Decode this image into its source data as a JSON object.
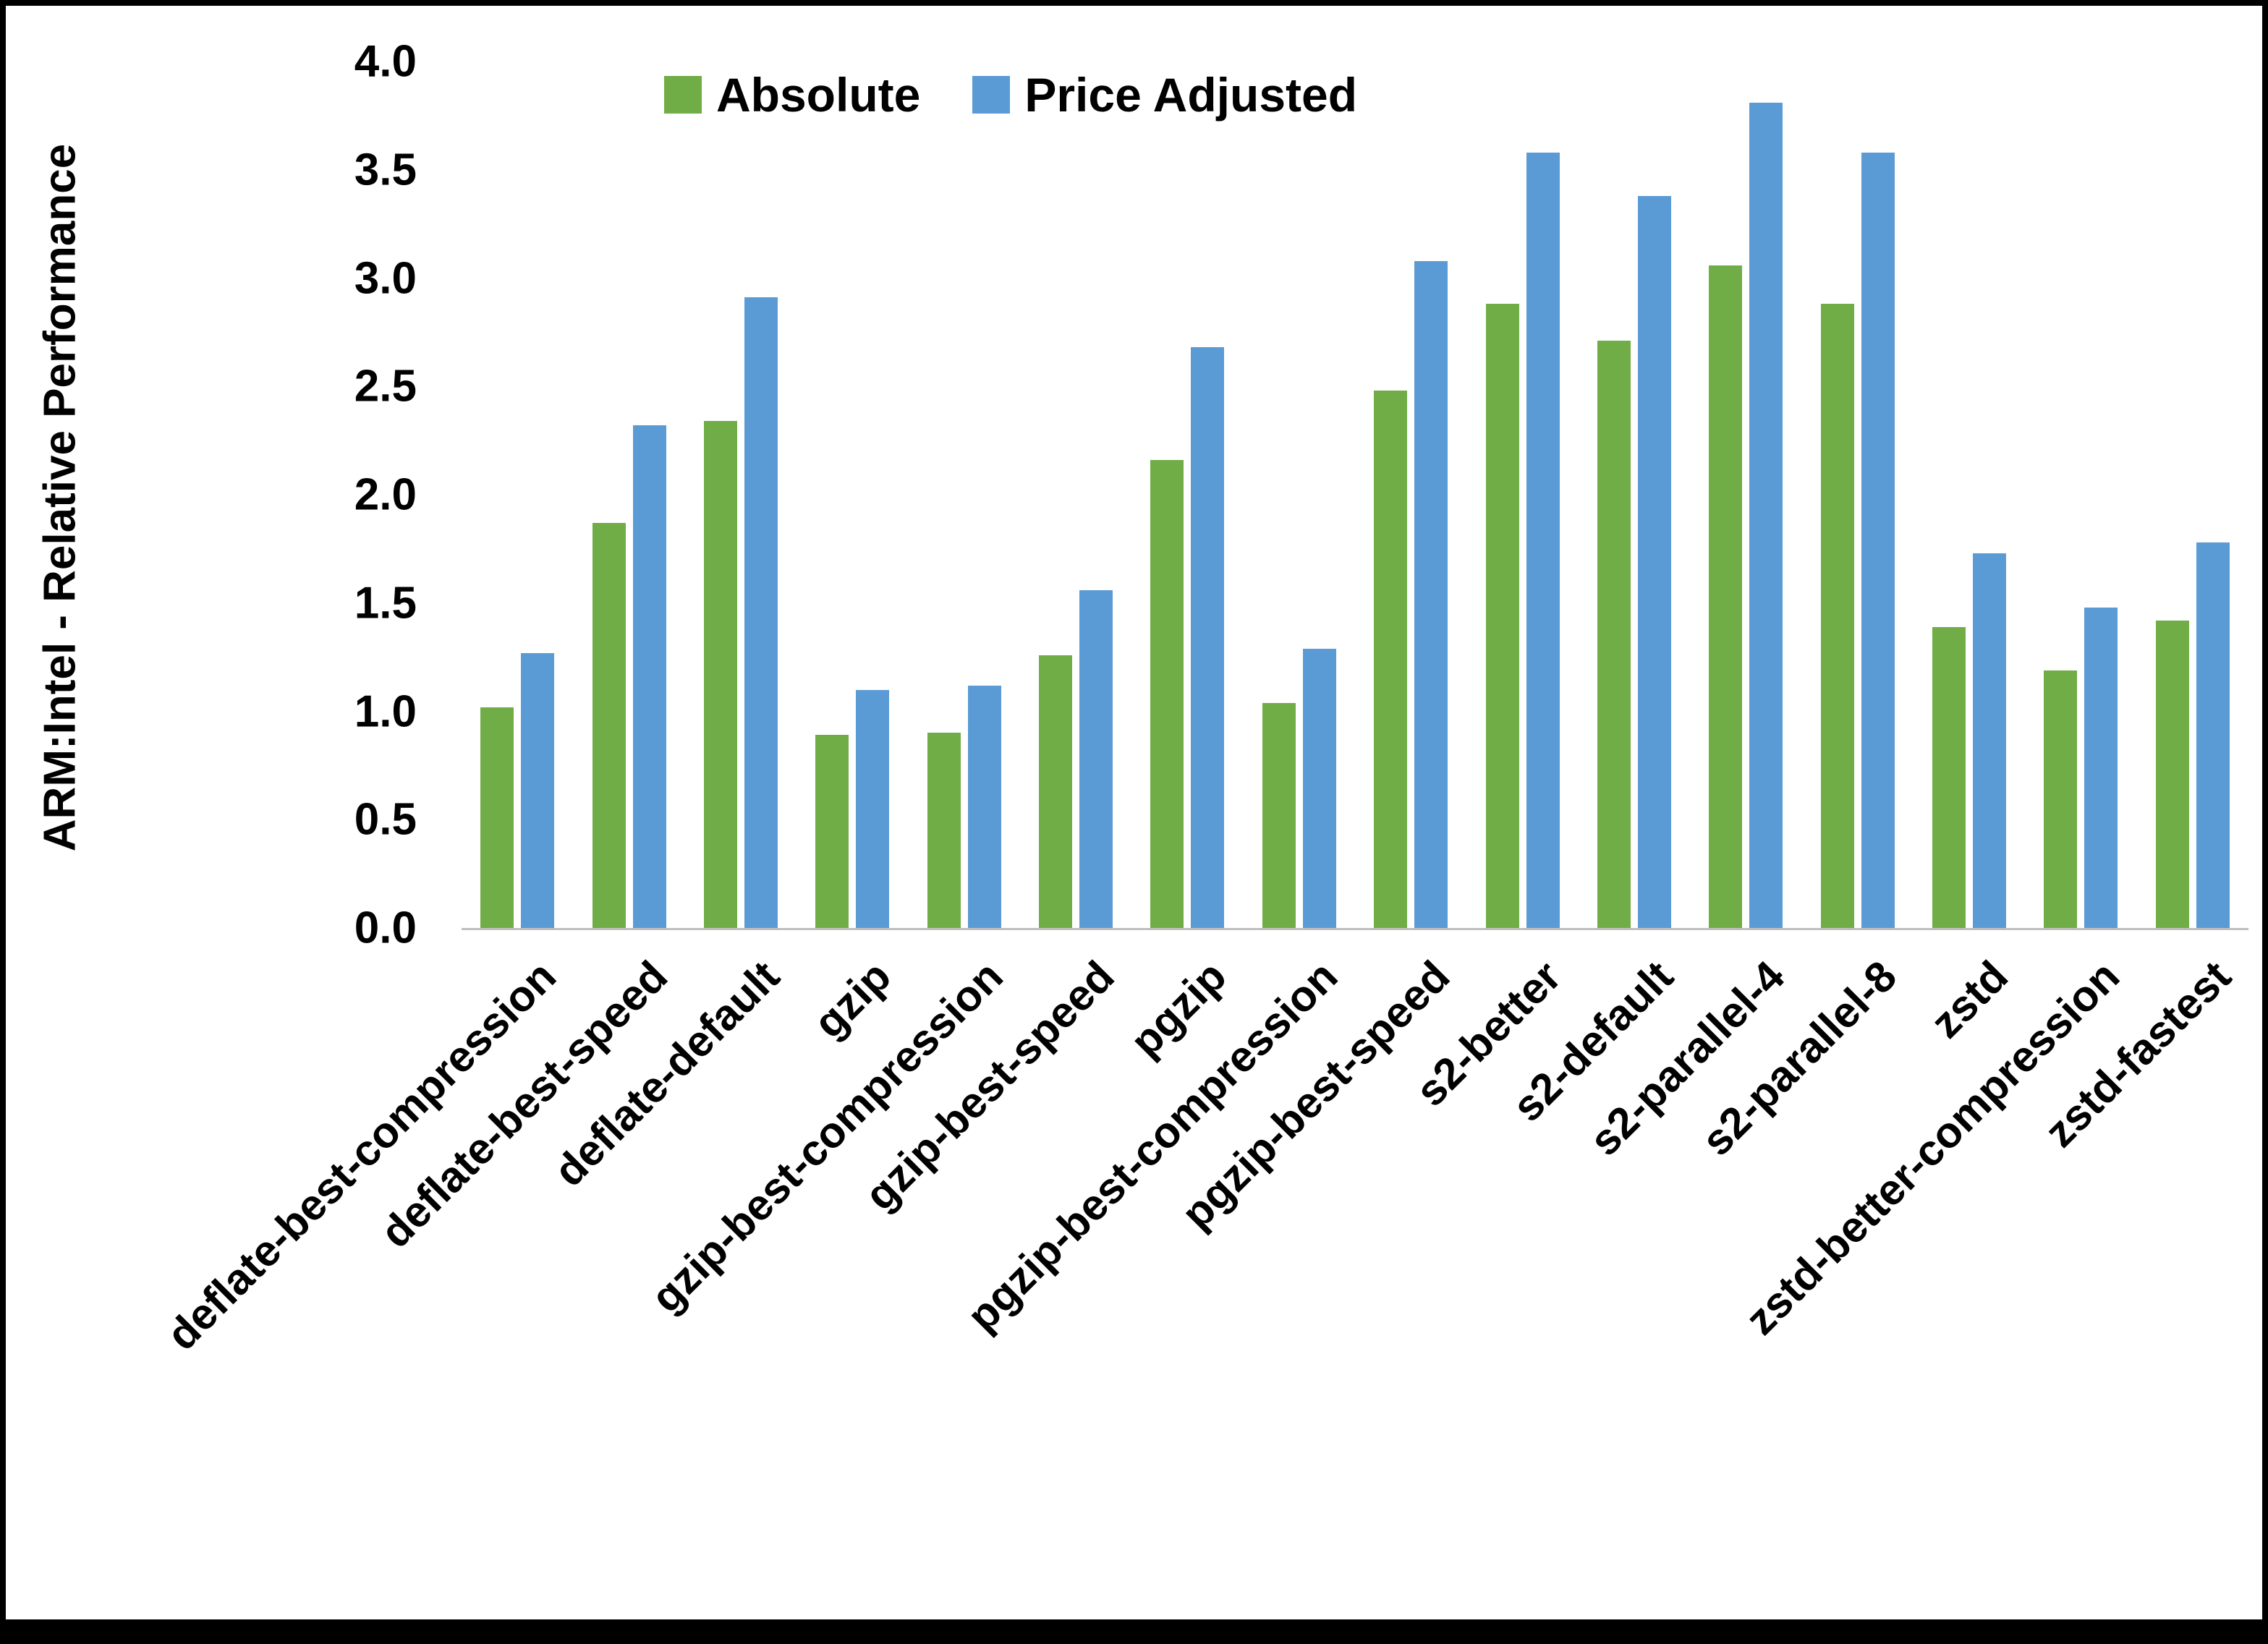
{
  "chart_data": {
    "type": "bar",
    "title": "",
    "xlabel": "",
    "ylabel": "ARM:Intel - Relative Performance",
    "ylim": [
      0.0,
      4.0
    ],
    "y_ticks": [
      "0.0",
      "0.5",
      "1.0",
      "1.5",
      "2.0",
      "2.5",
      "3.0",
      "3.5",
      "4.0"
    ],
    "grid": false,
    "legend_position": "top",
    "axis_line_color": "#bfbfbf",
    "categories": [
      "deflate-best-compression",
      "deflate-best-speed",
      "deflate-default",
      "gzip",
      "gzip-best-compression",
      "gzip-best-speed",
      "pgzip",
      "pgzip-best-compression",
      "pgzip-best-speed",
      "s2-better",
      "s2-default",
      "s2-parallel-4",
      "s2-parallel-8",
      "zstd",
      "zstd-better-compression",
      "zstd-fastest"
    ],
    "series": [
      {
        "name": "Absolute",
        "color": "#70AD47",
        "values": [
          1.02,
          1.87,
          2.34,
          0.89,
          0.9,
          1.26,
          2.16,
          1.04,
          2.48,
          2.88,
          2.71,
          3.06,
          2.88,
          1.39,
          1.19,
          1.42
        ]
      },
      {
        "name": "Price Adjusted",
        "color": "#5B9BD5",
        "values": [
          1.27,
          2.32,
          2.91,
          1.1,
          1.12,
          1.56,
          2.68,
          1.29,
          3.08,
          3.58,
          3.38,
          3.81,
          3.58,
          1.73,
          1.48,
          1.78
        ]
      }
    ]
  }
}
